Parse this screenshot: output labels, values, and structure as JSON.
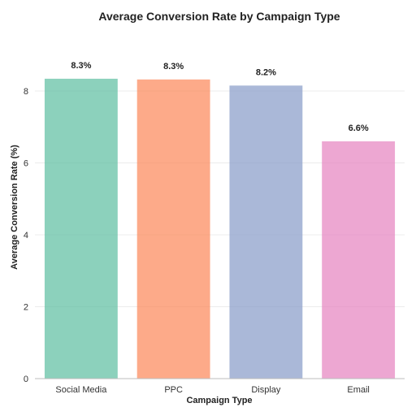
{
  "chart_data": {
    "type": "bar",
    "title": "Average Conversion Rate by Campaign Type",
    "xlabel": "Campaign Type",
    "ylabel": "Average Conversion Rate (%)",
    "categories": [
      "Social Media",
      "PPC",
      "Display",
      "Email"
    ],
    "values": [
      8.34,
      8.32,
      8.15,
      6.6
    ],
    "data_labels": [
      "8.3%",
      "8.3%",
      "8.2%",
      "6.6%"
    ],
    "colors": [
      "#66c2a5",
      "#fc8d62",
      "#8da0cb",
      "#e78ac3"
    ],
    "yticks": [
      0,
      2,
      4,
      6,
      8
    ],
    "ylim": [
      0,
      9.4
    ],
    "grid": true,
    "legend": "none"
  }
}
